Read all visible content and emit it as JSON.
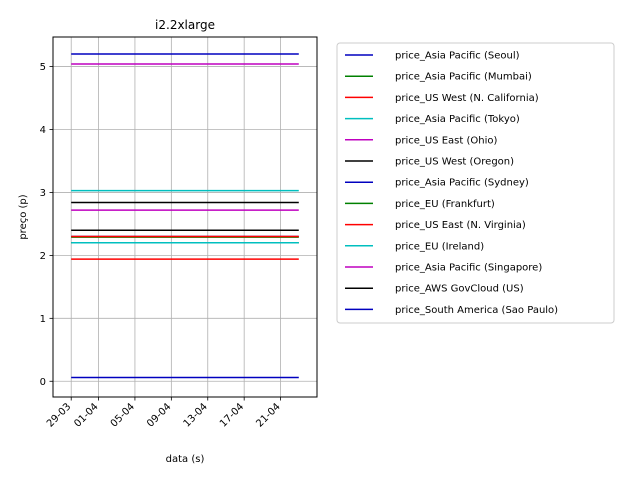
{
  "chart_data": {
    "type": "line",
    "title": "i2.2xlarge",
    "xlabel": "data (s)",
    "ylabel": "preço (p)",
    "x": [
      "2017-03-29",
      "2017-04-23"
    ],
    "x_ticks": [
      "29-03",
      "01-04",
      "05-04",
      "09-04",
      "13-04",
      "17-04",
      "21-04"
    ],
    "x_tick_dates": [
      "2017-03-29",
      "2017-04-01",
      "2017-04-05",
      "2017-04-09",
      "2017-04-13",
      "2017-04-17",
      "2017-04-21"
    ],
    "x_range": [
      "2017-03-27",
      "2017-04-25"
    ],
    "ylim": [
      -0.25,
      5.47
    ],
    "y_ticks": [
      0,
      1,
      2,
      3,
      4,
      5
    ],
    "grid": true,
    "legend_position": "outside-right",
    "series": [
      {
        "name": "price_Asia Pacific (Seoul)",
        "color": "#0000bf",
        "values": [
          5.2,
          5.2
        ]
      },
      {
        "name": "price_Asia Pacific (Mumbai)",
        "color": "#008000",
        "values": [
          2.2,
          2.2
        ]
      },
      {
        "name": "price_US West (N. California)",
        "color": "#ff0000",
        "values": [
          1.94,
          1.94
        ]
      },
      {
        "name": "price_Asia Pacific (Tokyo)",
        "color": "#00bfbf",
        "values": [
          3.03,
          3.03
        ]
      },
      {
        "name": "price_US East (Ohio)",
        "color": "#bf00bf",
        "values": [
          2.72,
          2.72
        ]
      },
      {
        "name": "price_US West (Oregon)",
        "color": "#000000",
        "values": [
          2.84,
          2.84
        ]
      },
      {
        "name": "price_Asia Pacific (Sydney)",
        "color": "#0000bf",
        "values": [
          2.3,
          2.3
        ]
      },
      {
        "name": "price_EU (Frankfurt)",
        "color": "#008000",
        "values": [
          2.29,
          2.29
        ]
      },
      {
        "name": "price_US East (N. Virginia)",
        "color": "#ff0000",
        "values": [
          2.3,
          2.3
        ]
      },
      {
        "name": "price_EU (Ireland)",
        "color": "#00bfbf",
        "values": [
          2.2,
          2.2
        ]
      },
      {
        "name": "price_Asia Pacific (Singapore)",
        "color": "#bf00bf",
        "values": [
          5.04,
          5.04
        ]
      },
      {
        "name": "price_AWS GovCloud (US)",
        "color": "#000000",
        "values": [
          2.4,
          2.4
        ]
      },
      {
        "name": "price_South America (Sao Paulo)",
        "color": "#0000bf",
        "values": [
          0.06,
          0.06
        ]
      }
    ]
  }
}
